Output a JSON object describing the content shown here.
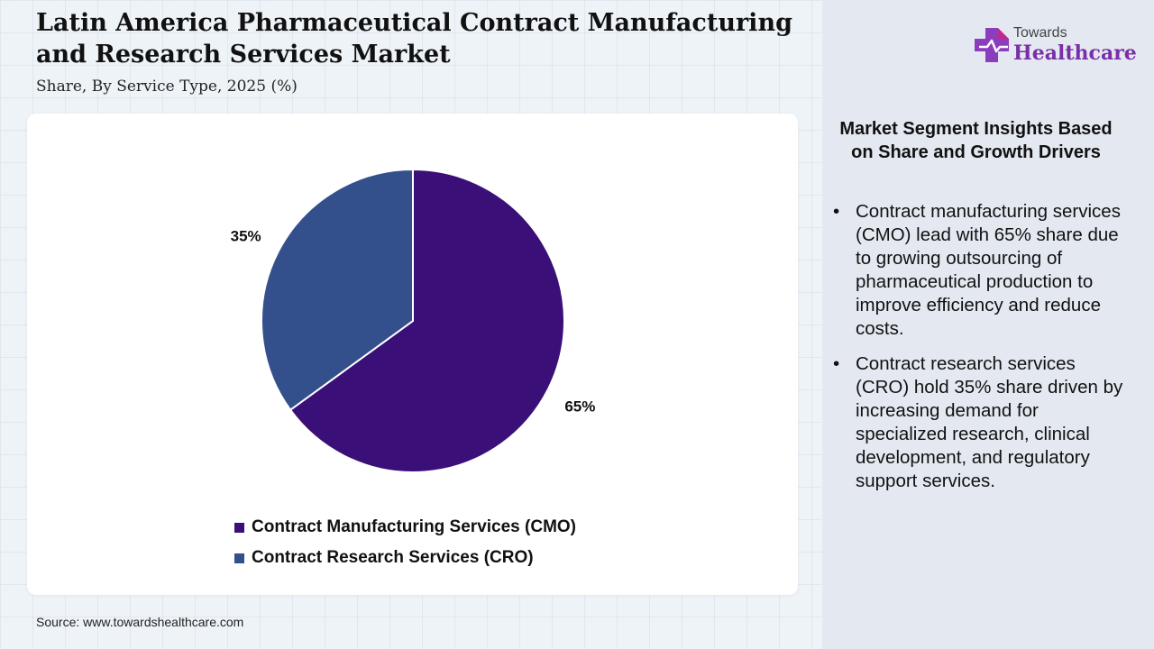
{
  "header": {
    "title": "Latin America Pharmaceutical Contract Manufacturing and Research Services Market",
    "subtitle": "Share, By Service Type, 2025 (%)"
  },
  "logo": {
    "top_text": "Towards",
    "bottom_text": "Healthcare",
    "icon": "medical-cross-icon"
  },
  "chart_data": {
    "type": "pie",
    "title": "",
    "categories": [
      "Contract Manufacturing Services (CMO)",
      "Contract Research Services (CRO)"
    ],
    "values": [
      65,
      35
    ],
    "labels": [
      "65%",
      "35%"
    ],
    "colors": [
      "#3b0f78",
      "#34508c"
    ],
    "legend": "bottom"
  },
  "legend": {
    "items": [
      {
        "label": "Contract Manufacturing Services (CMO)",
        "color": "#3b0f78"
      },
      {
        "label": "Contract Research Services (CRO)",
        "color": "#34508c"
      }
    ]
  },
  "insights": {
    "title": "Market Segment Insights Based on Share and Growth Drivers",
    "bullets": [
      "Contract manufacturing services (CMO) lead with 65% share due to growing outsourcing of pharmaceutical production to improve efficiency and reduce costs.",
      "Contract research services (CRO) hold 35% share driven by increasing demand for specialized research, clinical development, and regulatory support services."
    ]
  },
  "source": "Source: www.towardshealthcare.com",
  "colors": {
    "logo_purple": "#7a2fa8",
    "logo_magenta": "#c02a8e",
    "panel_bg": "#e4e9f1"
  }
}
